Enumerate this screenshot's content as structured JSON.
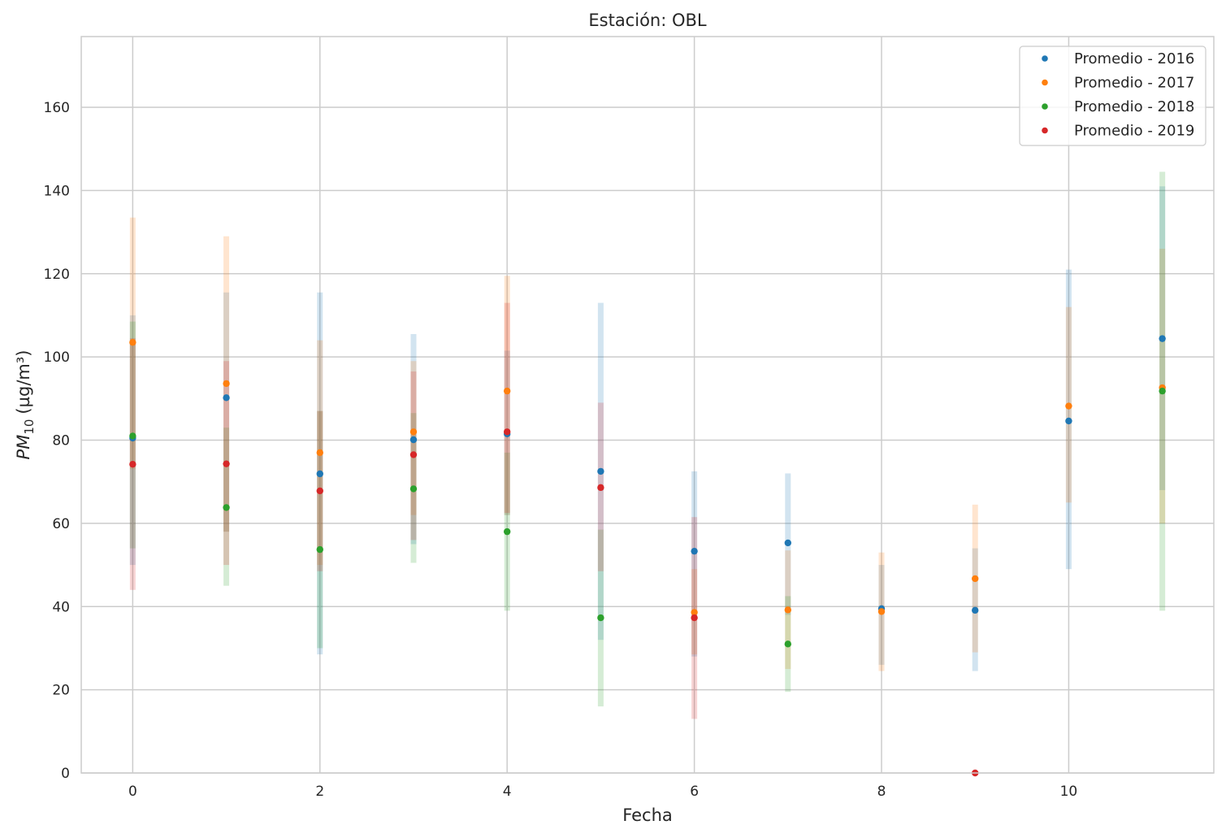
{
  "chart_data": {
    "type": "scatter",
    "title": "Estación: OBL",
    "xlabel": "Fecha",
    "ylabel": "PM10 (µg/m³)",
    "ylabel_main": "PM",
    "ylabel_sub": "10",
    "ylabel_unit": "(µg/m³)",
    "xlim": [
      -0.55,
      11.55
    ],
    "ylim": [
      0,
      177
    ],
    "xticks": [
      0,
      2,
      4,
      6,
      8,
      10
    ],
    "yticks": [
      0,
      20,
      40,
      60,
      80,
      100,
      120,
      140,
      160
    ],
    "grid": true,
    "legend_position": "top-right",
    "series": [
      {
        "name": "Promedio - 2016",
        "color": "#1f77b4",
        "x": [
          0,
          1,
          2,
          3,
          4,
          5,
          6,
          7,
          8,
          9,
          10,
          11
        ],
        "y": [
          80.5,
          90.2,
          71.9,
          80.1,
          81.5,
          72.5,
          53.3,
          55.3,
          39.5,
          39.1,
          84.6,
          104.4
        ],
        "low": [
          50,
          58,
          28.5,
          55,
          62,
          32,
          28,
          38,
          26,
          24.5,
          49,
          68
        ],
        "high": [
          110,
          115.5,
          115.5,
          105.5,
          101.5,
          113,
          72.5,
          72,
          50,
          54,
          121,
          141
        ]
      },
      {
        "name": "Promedio - 2017",
        "color": "#ff7f0e",
        "x": [
          0,
          1,
          2,
          3,
          4,
          5,
          6,
          7,
          8,
          9,
          10,
          11
        ],
        "y": [
          103.5,
          93.6,
          77.0,
          82.0,
          91.8,
          null,
          38.6,
          39.2,
          38.8,
          46.7,
          88.2,
          92.6
        ],
        "low": [
          73,
          58,
          50,
          62,
          62,
          null,
          28.5,
          25,
          24.5,
          29,
          65,
          60
        ],
        "high": [
          133.5,
          129,
          104,
          99,
          119.5,
          null,
          49,
          53.5,
          53,
          64.5,
          112,
          126
        ]
      },
      {
        "name": "Promedio - 2018",
        "color": "#2ca02c",
        "x": [
          0,
          1,
          2,
          3,
          4,
          5,
          6,
          7,
          8,
          9,
          10,
          11
        ],
        "y": [
          81.0,
          63.8,
          53.7,
          68.3,
          58.0,
          37.3,
          null,
          31.0,
          null,
          null,
          null,
          91.8
        ],
        "low": [
          54,
          45,
          30,
          50.5,
          39,
          16,
          null,
          19.5,
          null,
          null,
          null,
          39
        ],
        "high": [
          108.5,
          83,
          87,
          86.5,
          77,
          58.5,
          null,
          42.5,
          null,
          null,
          null,
          144.5
        ]
      },
      {
        "name": "Promedio - 2019",
        "color": "#d62728",
        "x": [
          0,
          1,
          2,
          3,
          4,
          5,
          6,
          7,
          8,
          9,
          10,
          11
        ],
        "y": [
          74.2,
          74.3,
          67.8,
          76.5,
          82.0,
          68.6,
          37.3,
          null,
          null,
          0,
          null,
          null
        ],
        "low": [
          44,
          50,
          48.5,
          56,
          62.5,
          48.5,
          13,
          null,
          null,
          0,
          null,
          null
        ],
        "high": [
          104.5,
          99,
          87,
          96.5,
          113,
          89,
          61.5,
          null,
          null,
          0,
          null,
          null
        ]
      }
    ]
  }
}
